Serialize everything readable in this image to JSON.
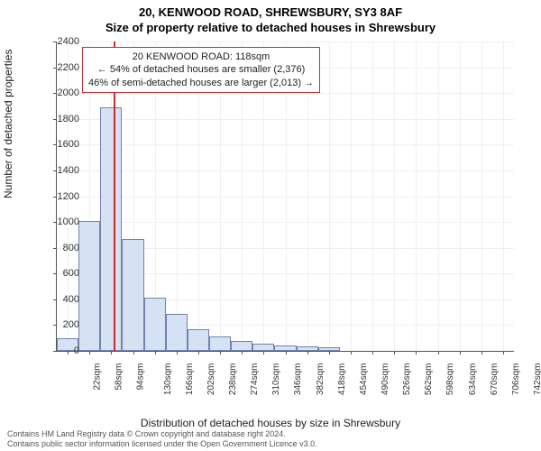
{
  "titles": {
    "line1": "20, KENWOOD ROAD, SHREWSBURY, SY3 8AF",
    "line2": "Size of property relative to detached houses in Shrewsbury"
  },
  "chart": {
    "type": "histogram",
    "plot_bg": "#ffffff",
    "grid_color": "#eef0f4",
    "axis_color": "#555555",
    "bar_fill": "#d6e2f3",
    "bar_border": "rgba(70,90,140,0.7)",
    "refline_color": "#cc2b2b",
    "ylim": [
      0,
      2400
    ],
    "ytick_step": 200,
    "ylabel": "Number of detached properties",
    "xlabel": "Distribution of detached houses by size in Shrewsbury",
    "xlabels": [
      "22sqm",
      "58sqm",
      "94sqm",
      "130sqm",
      "166sqm",
      "202sqm",
      "238sqm",
      "274sqm",
      "310sqm",
      "346sqm",
      "382sqm",
      "418sqm",
      "454sqm",
      "490sqm",
      "526sqm",
      "562sqm",
      "598sqm",
      "634sqm",
      "670sqm",
      "706sqm",
      "742sqm"
    ],
    "bars": [
      95,
      1010,
      1890,
      870,
      410,
      290,
      170,
      110,
      80,
      55,
      45,
      38,
      30,
      0,
      0,
      0,
      0,
      0,
      0,
      0,
      0
    ],
    "refline_bin_index": 2,
    "refline_fraction_in_bin": 0.67,
    "label_fontsize": 12,
    "tick_fontsize": 11
  },
  "annotation": {
    "border_color": "#cc2b2b",
    "lines": [
      "20 KENWOOD ROAD: 118sqm",
      "← 54% of detached houses are smaller (2,376)",
      "46% of semi-detached houses are larger (2,013) →"
    ]
  },
  "footer": {
    "line1": "Contains HM Land Registry data © Crown copyright and database right 2024.",
    "line2": "Contains public sector information licensed under the Open Government Licence v3.0."
  }
}
